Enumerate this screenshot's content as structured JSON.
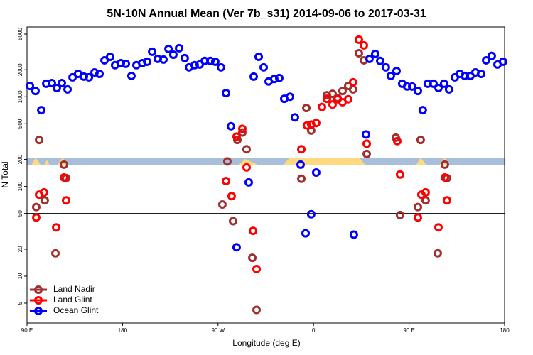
{
  "chart_data": {
    "type": "scatter",
    "title": "5N-10N Annual Mean (Ver 7b_s31)   2014-09-06 to 2017-03-31",
    "xlabel": "Longitude (deg E)",
    "ylabel": "N Total",
    "xlim": [
      90,
      540
    ],
    "ylim": [
      3,
      6000
    ],
    "log_y": true,
    "legend": "bottom-left",
    "xticks": [
      {
        "value": 90,
        "label": "90 E"
      },
      180,
      {
        "value": 270,
        "label": "90 W"
      },
      {
        "value": 360,
        "label": "0"
      },
      {
        "value": 450,
        "label": "90 E"
      },
      {
        "value": 540,
        "label": "180"
      }
    ],
    "yticks": [
      5,
      10,
      20,
      50,
      100,
      200,
      500,
      1000,
      2000,
      5000
    ],
    "hline": 50,
    "series": [
      {
        "name": "Land Nadir",
        "color": "#a03030",
        "x": [
          101.4,
          98.7,
          106.7,
          116.8,
          124.8,
          126.8,
          274.1,
          278.8,
          284.2,
          288.2,
          292.9,
          296.9,
          302.3,
          306.3,
          348.5,
          353.2,
          357.8,
          372.6,
          377.9,
          382.6,
          387.3,
          392.7,
          397.3,
          402.7,
          407.4,
          410.1,
          437.5,
          441.5,
          458.3,
          460.9,
          465.6,
          477,
          483.7,
          485.7
        ],
        "values": [
          330,
          59,
          70,
          18,
          175,
          124,
          63,
          190,
          41,
          330,
          400,
          260,
          16,
          4.2,
          122,
          750,
          420,
          1040,
          1080,
          970,
          1160,
          1320,
          1210,
          3060,
          2550,
          230,
          350,
          48,
          59,
          330,
          70,
          18,
          175,
          124
        ]
      },
      {
        "name": "Land Glint",
        "color": "#ff0000",
        "x": [
          98.7,
          101.4,
          106.1,
          117.5,
          124.8,
          126.8,
          277.5,
          282.8,
          287.5,
          292.9,
          296.9,
          303,
          306.3,
          348.5,
          353.8,
          357.8,
          362.5,
          367.9,
          372.6,
          377.9,
          382.6,
          387.3,
          392.7,
          397.3,
          402.7,
          407.4,
          410.1,
          438.9,
          441.5,
          458.3,
          461.6,
          465.6,
          477.7,
          483.7,
          485.7
        ],
        "values": [
          45,
          81,
          86,
          35,
          126,
          70,
          115,
          78,
          360,
          440,
          163,
          32,
          12,
          260,
          480,
          490,
          510,
          770,
          950,
          820,
          940,
          870,
          940,
          1450,
          4330,
          3740,
          300,
          320,
          136,
          45,
          81,
          86,
          35,
          126,
          70
        ]
      },
      {
        "name": "Ocean Glint",
        "color": "#0000ff",
        "x": [
          92.7,
          98,
          103.4,
          108.1,
          113.4,
          118.1,
          122.8,
          128.2,
          132.9,
          138.2,
          143.6,
          148.3,
          153.6,
          158.3,
          163,
          168.3,
          173,
          178.4,
          183.1,
          188.4,
          193.1,
          198.5,
          203.2,
          207.9,
          213.2,
          218.6,
          223.3,
          227.9,
          233.3,
          238.6,
          242.7,
          248,
          252.7,
          257.4,
          262.8,
          267.4,
          272.8,
          277.5,
          282.2,
          287.5,
          298.9,
          303.6,
          308.3,
          313,
          317.7,
          323,
          327.7,
          332.4,
          337.8,
          342.4,
          347.8,
          352.5,
          357.8,
          362.5,
          398,
          409.4,
          412.7,
          418.1,
          422.8,
          428.1,
          432.8,
          438.2,
          443.5,
          448.2,
          452.9,
          458.3,
          462.9,
          467.6,
          473,
          477.7,
          483,
          487.7,
          493.1,
          497.8,
          502.5,
          507.8,
          512.5,
          517.9,
          522.6,
          527.9,
          533.3,
          538.6
        ],
        "values": [
          1320,
          1160,
          710,
          1400,
          1420,
          1250,
          1420,
          1210,
          1650,
          1800,
          1680,
          1650,
          1870,
          1800,
          2550,
          2790,
          2250,
          2370,
          2330,
          1710,
          2250,
          2370,
          2460,
          3180,
          2650,
          2600,
          3420,
          2950,
          3480,
          2700,
          2130,
          2250,
          2290,
          2510,
          2510,
          2460,
          2130,
          1100,
          470,
          21,
          111,
          1680,
          2790,
          2130,
          1480,
          1580,
          1620,
          950,
          1000,
          590,
          175,
          30,
          49,
          143,
          29,
          380,
          2650,
          3010,
          2510,
          2130,
          1710,
          1940,
          1400,
          1300,
          1300,
          1160,
          710,
          1400,
          1400,
          1250,
          1400,
          1210,
          1650,
          1800,
          1710,
          1710,
          1870,
          1800,
          2550,
          2860,
          2290,
          2460
        ]
      }
    ]
  }
}
